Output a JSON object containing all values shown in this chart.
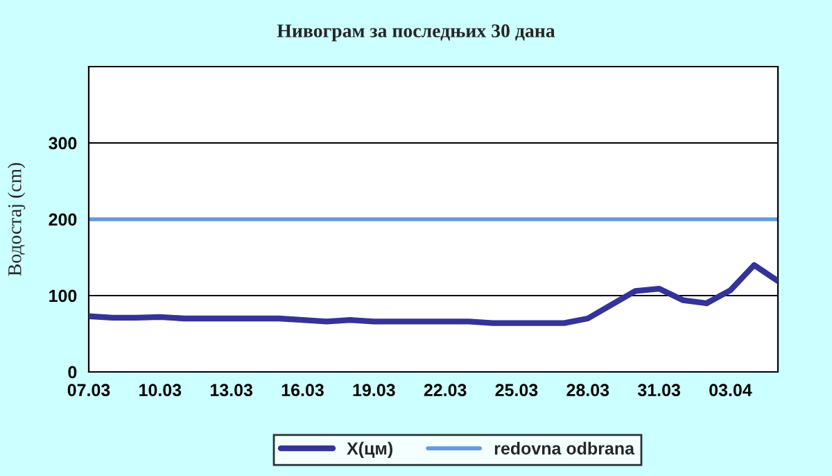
{
  "chart_data": {
    "type": "line",
    "title": "Нивограм за последњих 30 дана",
    "ylabel": "Водостај (cm)",
    "categories": [
      "07.03",
      null,
      null,
      "10.03",
      null,
      null,
      "13.03",
      null,
      null,
      "16.03",
      null,
      null,
      "19.03",
      null,
      null,
      "22.03",
      null,
      null,
      "25.03",
      null,
      null,
      "28.03",
      null,
      null,
      "31.03",
      null,
      null,
      "03.04",
      null,
      null
    ],
    "series": [
      {
        "name": "X(цм)",
        "color": "#333399",
        "values": [
          73,
          71,
          71,
          72,
          70,
          70,
          70,
          70,
          70,
          68,
          66,
          68,
          66,
          66,
          66,
          66,
          66,
          64,
          64,
          64,
          64,
          70,
          88,
          106,
          109,
          94,
          90,
          107,
          140,
          119
        ]
      }
    ],
    "ref_lines": [
      {
        "axis": "y",
        "value": 200,
        "label": "redovna odbrana",
        "color": "#6699dd"
      }
    ],
    "ylim": [
      0,
      400
    ],
    "yticks": [
      0,
      100,
      200,
      300
    ],
    "grid": "y",
    "legend": "bottom",
    "marker": "none",
    "line_style": "solid"
  }
}
